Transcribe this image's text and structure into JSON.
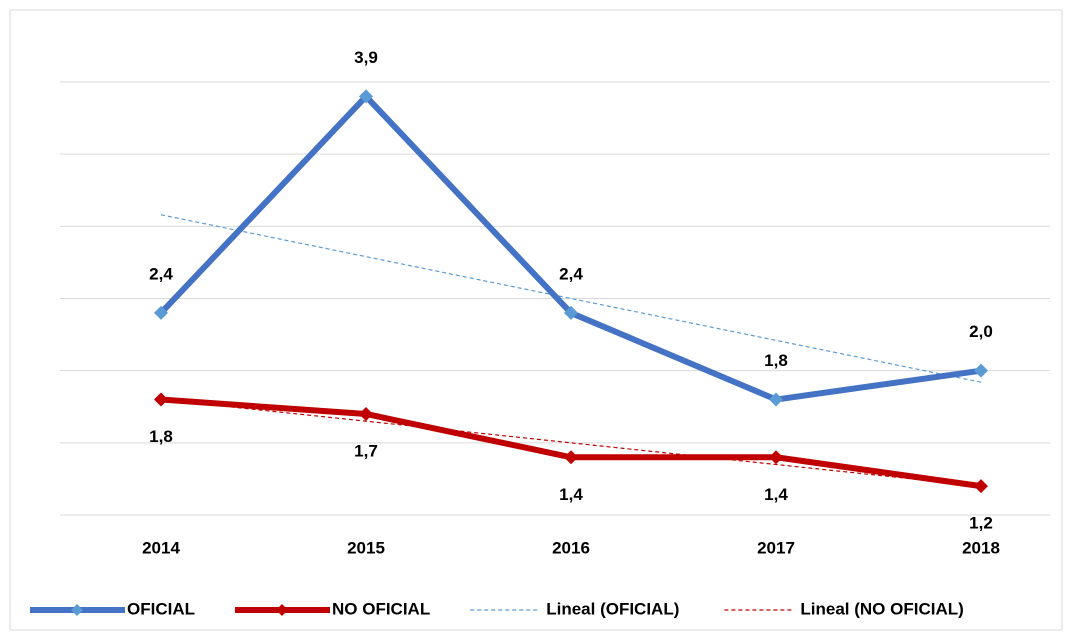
{
  "chart_data": {
    "type": "line",
    "categories": [
      "2014",
      "2015",
      "2016",
      "2017",
      "2018"
    ],
    "series": [
      {
        "name": "OFICIAL",
        "color": "#4472c4",
        "marker_color": "#5b9bd5",
        "values": [
          2.4,
          3.9,
          2.4,
          1.8,
          2.0
        ],
        "value_labels": [
          "2,4",
          "3,9",
          "2,4",
          "1,8",
          "2,0"
        ],
        "label_position": "above",
        "trendline": {
          "name": "Lineal (OFICIAL)",
          "color": "#5b9bd5"
        }
      },
      {
        "name": "NO OFICIAL",
        "color": "#c00000",
        "marker_color": "#c00000",
        "values": [
          1.8,
          1.7,
          1.4,
          1.4,
          1.2
        ],
        "value_labels": [
          "1,8",
          "1,7",
          "1,4",
          "1,4",
          "1,2"
        ],
        "label_position": "below",
        "trendline": {
          "name": "Lineal (NO OFICIAL)",
          "color": "#c00000"
        }
      }
    ],
    "ylim": [
      1,
      4
    ],
    "yticks": [
      1,
      1.5,
      2,
      2.5,
      3,
      3.5,
      4
    ],
    "grid": true,
    "legend": "bottom"
  }
}
